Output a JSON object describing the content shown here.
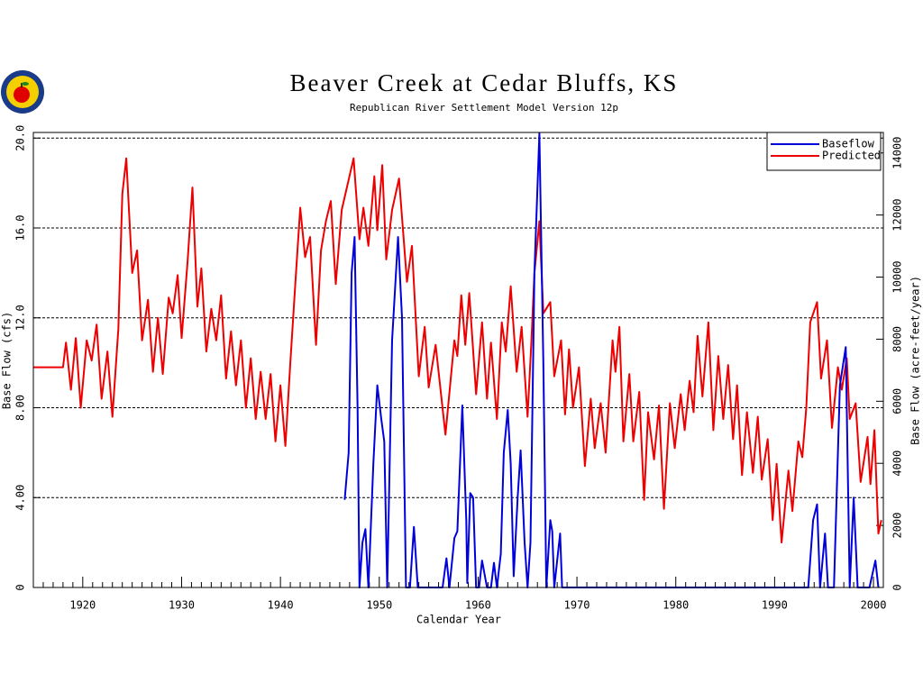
{
  "chart_data": {
    "type": "line",
    "title": "Beaver Creek at Cedar Bluffs, KS",
    "subtitle": "Republican River Settlement Model Version 12p",
    "xlabel": "Calendar Year",
    "ylabel": "Base Flow (cfs)",
    "y2label": "Base Flow (acre-feet/year)",
    "xlim": [
      1915,
      2001
    ],
    "xticks": [
      1920,
      1930,
      1940,
      1950,
      1960,
      1970,
      1980,
      1990,
      2000
    ],
    "xminorticks": [
      1915,
      1916,
      1917,
      1918,
      1919,
      1921,
      1922,
      1923,
      1924,
      1925,
      1926,
      1927,
      1928,
      1929,
      1931,
      1932,
      1933,
      1934,
      1935,
      1936,
      1937,
      1938,
      1939,
      1941,
      1942,
      1943,
      1944,
      1945,
      1946,
      1947,
      1948,
      1949,
      1951,
      1952,
      1953,
      1954,
      1955,
      1956,
      1957,
      1958,
      1959,
      1961,
      1962,
      1963,
      1964,
      1965,
      1966,
      1967,
      1968,
      1969,
      1971,
      1972,
      1973,
      1974,
      1975,
      1976,
      1977,
      1978,
      1979,
      1981,
      1982,
      1983,
      1984,
      1985,
      1986,
      1987,
      1988,
      1989,
      1991,
      1992,
      1993,
      1994,
      1995,
      1996,
      1997,
      1998,
      1999,
      2001
    ],
    "ylim": [
      0,
      20.25
    ],
    "yticks": [
      0,
      {
        "value": 4,
        "label": "4.00"
      },
      {
        "value": 8,
        "label": "8.00"
      },
      {
        "value": 12,
        "label": "12.0"
      },
      {
        "value": 16,
        "label": "16.0"
      },
      {
        "value": 20,
        "label": "20.0"
      }
    ],
    "y2lim": [
      0,
      14660
    ],
    "y2ticks": [
      0,
      2000,
      4000,
      6000,
      8000,
      10000,
      12000,
      14000
    ],
    "grid": true,
    "legend": "upper right",
    "series": [
      {
        "name": "Baseflow",
        "color": "#0000dd",
        "x": [
          1946.5,
          1946.9,
          1947.2,
          1947.5,
          1947.8,
          1948.0,
          1948.3,
          1948.6,
          1948.9,
          1949.4,
          1949.8,
          1950.2,
          1950.5,
          1950.8,
          1951.3,
          1951.9,
          1952.3,
          1952.7,
          1953.1,
          1953.5,
          1953.9,
          1956.4,
          1956.8,
          1957.1,
          1957.6,
          1957.9,
          1958.4,
          1958.8,
          1958.9,
          1959.2,
          1959.5,
          1959.8,
          1960.1,
          1960.4,
          1960.9,
          1961.3,
          1961.6,
          1961.9,
          1962.3,
          1962.6,
          1963.0,
          1963.3,
          1963.6,
          1964.0,
          1964.3,
          1964.7,
          1965.0,
          1965.3,
          1965.7,
          1966.2,
          1966.6,
          1966.9,
          1967.3,
          1967.5,
          1967.7,
          1968.3,
          1968.5,
          1993.4,
          1993.9,
          1994.3,
          1994.6,
          1995.1,
          1995.4,
          1996.0,
          1996.6,
          1997.2,
          1997.6,
          1998.0,
          1998.2,
          1998.4,
          1999.6,
          2000.2,
          2000.5
        ],
        "values": [
          3.9,
          6.0,
          14.0,
          15.6,
          8.0,
          0,
          2.0,
          2.6,
          0,
          5.5,
          9.0,
          7.5,
          6.5,
          0,
          11.0,
          15.6,
          12.0,
          0,
          0,
          2.7,
          0,
          0,
          1.3,
          0,
          2.2,
          2.5,
          8.1,
          3.0,
          0.2,
          4.2,
          4.0,
          0,
          0,
          1.2,
          0,
          0,
          1.1,
          0,
          1.5,
          6.0,
          7.9,
          5.5,
          0.5,
          4.0,
          6.1,
          2.0,
          0,
          2.0,
          14.0,
          20.2,
          10.0,
          0,
          3.0,
          2.5,
          0,
          2.4,
          0,
          0,
          3.0,
          3.7,
          0,
          2.4,
          0,
          0,
          9.0,
          10.7,
          0,
          4.0,
          2.0,
          0,
          0,
          1.2,
          0
        ]
      },
      {
        "name": "Predicted",
        "color": "#ee0000",
        "x": [
          1915,
          1918.0,
          1918.3,
          1918.8,
          1919.3,
          1919.8,
          1920.4,
          1920.9,
          1921.4,
          1921.9,
          1922.5,
          1923.0,
          1923.6,
          1924.0,
          1924.4,
          1925.0,
          1925.5,
          1926.0,
          1926.6,
          1927.1,
          1927.6,
          1928.1,
          1928.7,
          1929.1,
          1929.6,
          1930.0,
          1930.6,
          1931.1,
          1931.6,
          1932.0,
          1932.5,
          1933.0,
          1933.5,
          1934.0,
          1934.5,
          1935.0,
          1935.5,
          1936.0,
          1936.5,
          1937.0,
          1937.5,
          1938.0,
          1938.5,
          1939.0,
          1939.5,
          1940.0,
          1940.5,
          1941.0,
          1941.5,
          1942.0,
          1942.5,
          1943.0,
          1943.6,
          1944.1,
          1944.6,
          1945.1,
          1945.6,
          1946.2,
          1947.4,
          1948.0,
          1948.4,
          1948.9,
          1949.5,
          1949.8,
          1950.3,
          1950.7,
          1951.3,
          1952.0,
          1952.8,
          1953.3,
          1954.0,
          1954.6,
          1955.0,
          1955.7,
          1956.7,
          1957.6,
          1957.9,
          1958.3,
          1958.7,
          1959.1,
          1959.8,
          1960.4,
          1960.9,
          1961.3,
          1961.9,
          1962.4,
          1962.8,
          1963.3,
          1963.9,
          1964.4,
          1965.0,
          1965.4,
          1965.7,
          1966.2,
          1966.6,
          1967.3,
          1967.7,
          1968.4,
          1968.8,
          1969.2,
          1969.6,
          1970.2,
          1970.8,
          1971.4,
          1971.8,
          1972.4,
          1972.9,
          1973.6,
          1973.9,
          1974.3,
          1974.7,
          1975.3,
          1975.7,
          1976.3,
          1976.8,
          1977.2,
          1977.8,
          1978.3,
          1978.8,
          1979.4,
          1979.9,
          1980.5,
          1980.9,
          1981.4,
          1981.8,
          1982.2,
          1982.7,
          1983.3,
          1983.8,
          1984.3,
          1984.8,
          1985.3,
          1985.8,
          1986.2,
          1986.7,
          1987.2,
          1987.8,
          1988.3,
          1988.7,
          1989.3,
          1989.8,
          1990.2,
          1990.7,
          1991.4,
          1991.8,
          1992.4,
          1992.8,
          1993.2,
          1993.6,
          1994.3,
          1994.7,
          1995.3,
          1995.8,
          1996.4,
          1996.8,
          1997.3,
          1997.6,
          1998.2,
          1998.7,
          1999.4,
          1999.7,
          2000.1,
          2000.5,
          2000.8
        ],
        "values": [
          9.8,
          9.8,
          10.9,
          8.8,
          11.1,
          8.0,
          11.0,
          10.1,
          11.7,
          8.4,
          10.5,
          7.6,
          11.5,
          17.5,
          19.1,
          14.0,
          15.0,
          11.0,
          12.8,
          9.6,
          12.0,
          9.5,
          12.9,
          12.2,
          13.9,
          11.1,
          14.5,
          17.8,
          12.5,
          14.2,
          10.5,
          12.4,
          11.0,
          13.0,
          9.3,
          11.4,
          9.0,
          11.0,
          8.0,
          10.2,
          7.5,
          9.6,
          7.5,
          9.5,
          6.5,
          9.0,
          6.3,
          10.0,
          13.5,
          16.9,
          14.7,
          15.6,
          10.8,
          15.0,
          16.3,
          17.2,
          13.5,
          16.8,
          19.1,
          15.5,
          16.9,
          15.2,
          18.3,
          15.9,
          18.8,
          14.6,
          16.8,
          18.2,
          13.6,
          15.2,
          9.4,
          11.6,
          8.9,
          10.8,
          6.8,
          11.0,
          10.3,
          13.0,
          10.8,
          13.1,
          8.6,
          11.8,
          8.4,
          10.9,
          7.5,
          11.8,
          10.5,
          13.4,
          9.6,
          11.6,
          7.6,
          11.0,
          14.0,
          16.3,
          12.2,
          12.7,
          9.4,
          11.0,
          7.7,
          10.6,
          8.0,
          9.8,
          5.4,
          8.4,
          6.2,
          8.2,
          6.0,
          11.0,
          9.6,
          11.6,
          6.5,
          9.5,
          6.5,
          8.7,
          3.9,
          7.8,
          5.7,
          8.1,
          3.5,
          8.2,
          6.2,
          8.6,
          7.0,
          9.2,
          7.8,
          11.2,
          8.5,
          11.8,
          7.0,
          10.3,
          7.5,
          9.9,
          6.6,
          9.0,
          5.0,
          7.8,
          5.1,
          7.6,
          4.8,
          6.6,
          3.0,
          5.5,
          2.0,
          5.2,
          3.4,
          6.5,
          5.8,
          8.0,
          11.8,
          12.7,
          9.3,
          11.0,
          7.1,
          9.8,
          8.8,
          10.2,
          7.5,
          8.2,
          4.7,
          6.7,
          4.6,
          7.0,
          2.4,
          3.0
        ]
      }
    ]
  }
}
